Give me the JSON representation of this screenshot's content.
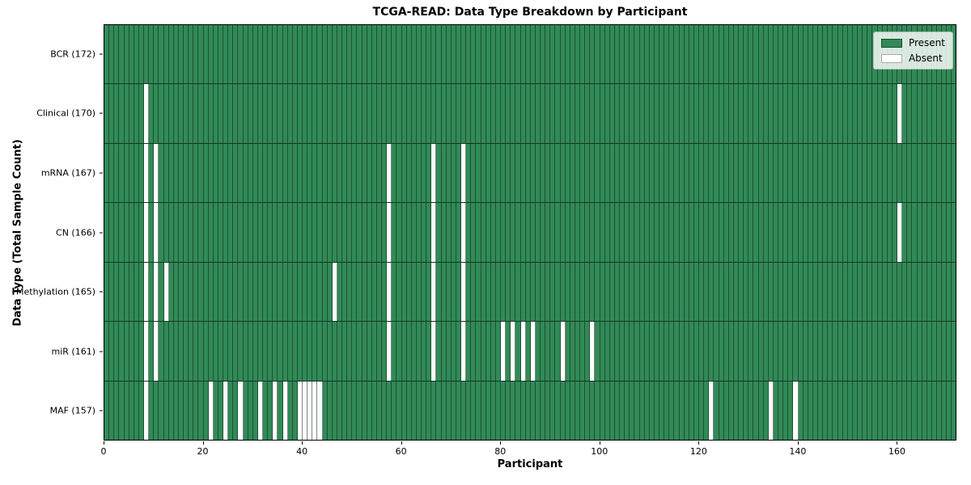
{
  "title": "TCGA-READ: Data Type Breakdown by Participant",
  "colors": {
    "present": "#318a57",
    "absent": "#ffffff",
    "grid": "rgba(12,34,23,0.55)",
    "rowline": "rgba(12,34,23,0.8)",
    "spine": "#000000"
  },
  "legend_labels": {
    "present": "Present",
    "absent": "Absent"
  },
  "chart_data": {
    "type": "heatmap",
    "title": "TCGA-READ: Data Type Breakdown by Participant",
    "xlabel": "Participant",
    "ylabel": "Data Type (Total Sample Count)",
    "legend": [
      "Present",
      "Absent"
    ],
    "legend_position": "upper right",
    "n_participants": 172,
    "x_range": [
      0,
      172
    ],
    "x_ticks": [
      0,
      20,
      40,
      60,
      80,
      100,
      120,
      140,
      160
    ],
    "cell_values": {
      "present": 1,
      "absent": 0
    },
    "rows": [
      {
        "label": "BCR (172)",
        "data_type": "BCR",
        "total_sample_count": 172,
        "absent_participants": []
      },
      {
        "label": "Clinical (170)",
        "data_type": "Clinical",
        "total_sample_count": 170,
        "absent_participants": [
          8,
          160
        ]
      },
      {
        "label": "mRNA (167)",
        "data_type": "mRNA",
        "total_sample_count": 167,
        "absent_participants": [
          8,
          10,
          57,
          66,
          72
        ]
      },
      {
        "label": "CN (166)",
        "data_type": "CN",
        "total_sample_count": 166,
        "absent_participants": [
          8,
          10,
          57,
          66,
          72,
          160
        ]
      },
      {
        "label": "Methylation (165)",
        "data_type": "Methylation",
        "total_sample_count": 165,
        "absent_participants": [
          8,
          10,
          12,
          46,
          57,
          66,
          72
        ]
      },
      {
        "label": "miR (161)",
        "data_type": "miR",
        "total_sample_count": 161,
        "absent_participants": [
          8,
          10,
          57,
          66,
          72,
          80,
          82,
          84,
          86,
          92,
          98
        ]
      },
      {
        "label": "MAF (157)",
        "data_type": "MAF",
        "total_sample_count": 157,
        "absent_participants": [
          8,
          21,
          24,
          27,
          31,
          34,
          36,
          39,
          40,
          41,
          42,
          43,
          122,
          134,
          139
        ]
      }
    ]
  }
}
